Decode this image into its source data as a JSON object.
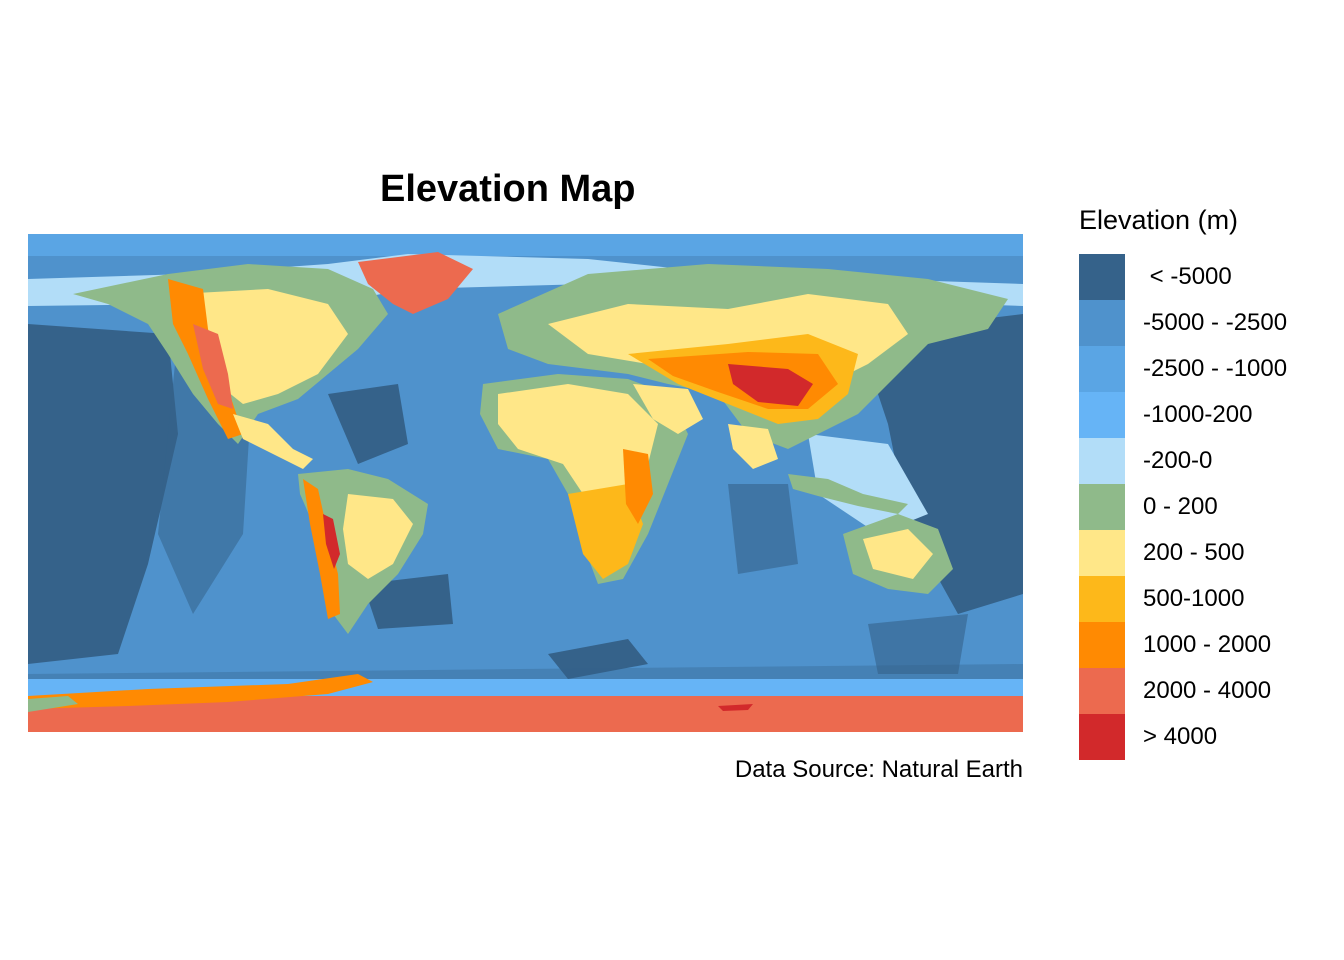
{
  "title": "Elevation Map",
  "caption": "Data Source: Natural Earth",
  "legend": {
    "title": "Elevation (m)",
    "items": [
      {
        "label": " < -5000",
        "color": "#35628A"
      },
      {
        "label": "-5000 - -2500",
        "color": "#4F92CC"
      },
      {
        "label": "-2500 - -1000",
        "color": "#5AA5E4"
      },
      {
        "label": "-1000-200",
        "color": "#66B4F6"
      },
      {
        "label": "-200-0",
        "color": "#B2DDF8"
      },
      {
        "label": "0 - 200",
        "color": "#8FBA8A"
      },
      {
        "label": "200 - 500",
        "color": "#FFE788"
      },
      {
        "label": "500-1000",
        "color": "#FDB81A"
      },
      {
        "label": "1000 - 2000",
        "color": "#FF8A02"
      },
      {
        "label": "2000 - 4000",
        "color": "#EC6A4F"
      },
      {
        "label": "> 4000",
        "color": "#D2292B"
      }
    ]
  }
}
